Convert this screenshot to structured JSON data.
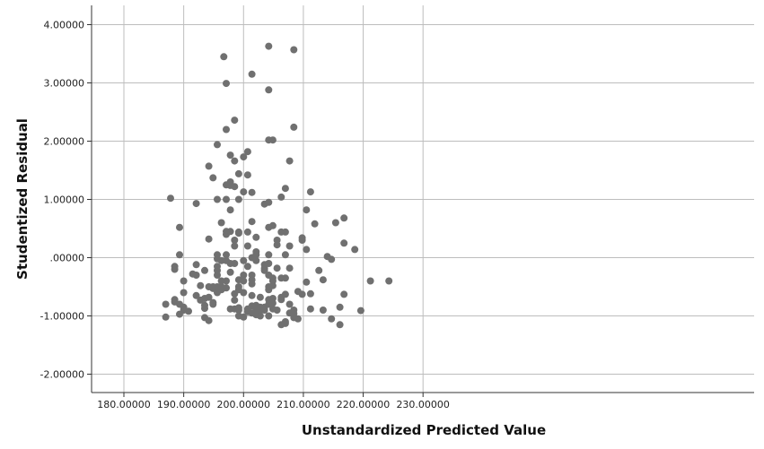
{
  "chart_data": {
    "type": "scatter",
    "title": "",
    "xlabel": "Unstandardized Predicted Value",
    "ylabel": "Studentized Residual",
    "xlim": [
      180,
      230
    ],
    "ylim": [
      -2.0,
      4.0
    ],
    "grid": true,
    "x_ticks": [
      180,
      190,
      200,
      210,
      220,
      230
    ],
    "x_tick_labels": [
      "180.00000",
      "190.00000",
      "200.00000",
      "210.00000",
      "220.00000",
      "230.00000"
    ],
    "y_ticks": [
      -2,
      -1,
      0,
      1,
      2,
      3,
      4
    ],
    "y_tick_labels": [
      "-2.00000",
      "-1.00000",
      ".00000",
      "1.00000",
      "2.00000",
      "3.00000",
      "4.00000"
    ],
    "colors": {
      "point": "#707070",
      "grid": "#bdbdbd",
      "axis": "#333333"
    },
    "points": [
      [
        187.0,
        -0.8
      ],
      [
        187.0,
        -1.02
      ],
      [
        187.8,
        1.02
      ],
      [
        188.5,
        -0.15
      ],
      [
        188.5,
        -0.2
      ],
      [
        188.5,
        -0.72
      ],
      [
        188.5,
        -0.76
      ],
      [
        189.3,
        0.52
      ],
      [
        189.3,
        0.05
      ],
      [
        189.3,
        -0.8
      ],
      [
        189.3,
        -0.97
      ],
      [
        190.0,
        -0.4
      ],
      [
        190.0,
        -0.6
      ],
      [
        190.0,
        -0.85
      ],
      [
        190.0,
        -0.9
      ],
      [
        190.8,
        -0.92
      ],
      [
        191.5,
        -0.28
      ],
      [
        192.1,
        0.93
      ],
      [
        192.1,
        -0.12
      ],
      [
        192.1,
        -0.3
      ],
      [
        192.1,
        -0.65
      ],
      [
        192.8,
        -0.48
      ],
      [
        192.8,
        -0.73
      ],
      [
        193.5,
        -0.22
      ],
      [
        193.5,
        -0.7
      ],
      [
        193.5,
        -0.82
      ],
      [
        193.5,
        -0.87
      ],
      [
        193.5,
        -1.03
      ],
      [
        194.2,
        1.57
      ],
      [
        194.2,
        0.32
      ],
      [
        194.2,
        -0.5
      ],
      [
        194.2,
        -0.68
      ],
      [
        194.2,
        -1.08
      ],
      [
        194.9,
        1.37
      ],
      [
        194.9,
        -0.5
      ],
      [
        194.9,
        -0.53
      ],
      [
        194.9,
        -0.77
      ],
      [
        194.9,
        -0.8
      ],
      [
        195.6,
        1.94
      ],
      [
        195.6,
        1.0
      ],
      [
        195.6,
        0.05
      ],
      [
        195.6,
        -0.02
      ],
      [
        195.6,
        -0.15
      ],
      [
        195.6,
        -0.22
      ],
      [
        195.6,
        -0.3
      ],
      [
        195.6,
        -0.5
      ],
      [
        195.6,
        -0.6
      ],
      [
        196.3,
        0.6
      ],
      [
        196.3,
        -0.05
      ],
      [
        196.3,
        -0.4
      ],
      [
        196.3,
        -0.5
      ],
      [
        196.3,
        -0.55
      ],
      [
        196.7,
        3.45
      ],
      [
        197.1,
        2.99
      ],
      [
        197.1,
        2.2
      ],
      [
        197.1,
        1.25
      ],
      [
        197.1,
        1.0
      ],
      [
        197.1,
        0.45
      ],
      [
        197.1,
        0.4
      ],
      [
        197.1,
        0.05
      ],
      [
        197.1,
        -0.05
      ],
      [
        197.1,
        -0.4
      ],
      [
        197.1,
        -0.52
      ],
      [
        197.8,
        1.76
      ],
      [
        197.8,
        1.3
      ],
      [
        197.8,
        1.24
      ],
      [
        197.8,
        0.82
      ],
      [
        197.8,
        0.45
      ],
      [
        197.8,
        -0.1
      ],
      [
        197.8,
        -0.25
      ],
      [
        197.8,
        -0.88
      ],
      [
        198.5,
        2.36
      ],
      [
        198.5,
        1.66
      ],
      [
        198.5,
        1.22
      ],
      [
        198.5,
        0.3
      ],
      [
        198.5,
        0.2
      ],
      [
        198.5,
        -0.1
      ],
      [
        198.5,
        -0.62
      ],
      [
        198.5,
        -0.73
      ],
      [
        198.5,
        -0.88
      ],
      [
        199.2,
        1.44
      ],
      [
        199.2,
        1.0
      ],
      [
        199.2,
        0.44
      ],
      [
        199.2,
        0.42
      ],
      [
        199.2,
        -0.38
      ],
      [
        199.2,
        -0.5
      ],
      [
        199.2,
        -0.55
      ],
      [
        199.2,
        -0.86
      ],
      [
        199.2,
        -0.9
      ],
      [
        199.2,
        -1.0
      ],
      [
        200.0,
        1.73
      ],
      [
        200.0,
        1.13
      ],
      [
        200.0,
        -0.05
      ],
      [
        200.0,
        -0.3
      ],
      [
        200.0,
        -0.4
      ],
      [
        200.0,
        -0.6
      ],
      [
        200.0,
        -1.02
      ],
      [
        200.7,
        1.82
      ],
      [
        200.7,
        1.42
      ],
      [
        200.7,
        0.44
      ],
      [
        200.7,
        0.2
      ],
      [
        200.7,
        -0.15
      ],
      [
        200.7,
        -0.88
      ],
      [
        200.7,
        -0.93
      ],
      [
        201.4,
        3.15
      ],
      [
        201.4,
        1.12
      ],
      [
        201.4,
        0.62
      ],
      [
        201.4,
        0.0
      ],
      [
        201.4,
        -0.3
      ],
      [
        201.4,
        -0.38
      ],
      [
        201.4,
        -0.45
      ],
      [
        201.4,
        -0.65
      ],
      [
        201.4,
        -0.83
      ],
      [
        201.4,
        -0.95
      ],
      [
        202.1,
        0.35
      ],
      [
        202.1,
        0.1
      ],
      [
        202.1,
        0.05
      ],
      [
        202.1,
        -0.05
      ],
      [
        202.1,
        -0.82
      ],
      [
        202.1,
        -0.88
      ],
      [
        202.1,
        -0.92
      ],
      [
        202.1,
        -0.98
      ],
      [
        202.8,
        -0.68
      ],
      [
        202.8,
        -0.85
      ],
      [
        202.8,
        -0.9
      ],
      [
        202.8,
        -1.0
      ],
      [
        203.5,
        0.92
      ],
      [
        203.5,
        -0.12
      ],
      [
        203.5,
        -0.18
      ],
      [
        203.5,
        -0.22
      ],
      [
        203.5,
        -0.85
      ],
      [
        203.5,
        -0.9
      ],
      [
        204.2,
        3.63
      ],
      [
        204.2,
        2.88
      ],
      [
        204.2,
        2.02
      ],
      [
        204.2,
        0.95
      ],
      [
        204.2,
        0.52
      ],
      [
        204.2,
        0.05
      ],
      [
        204.2,
        -0.1
      ],
      [
        204.2,
        -0.3
      ],
      [
        204.2,
        -0.5
      ],
      [
        204.2,
        -0.55
      ],
      [
        204.2,
        -0.72
      ],
      [
        204.2,
        -0.8
      ],
      [
        204.2,
        -1.0
      ],
      [
        204.9,
        2.02
      ],
      [
        204.9,
        0.55
      ],
      [
        204.9,
        -0.35
      ],
      [
        204.9,
        -0.4
      ],
      [
        204.9,
        -0.48
      ],
      [
        204.9,
        -0.7
      ],
      [
        204.9,
        -0.78
      ],
      [
        204.9,
        -0.88
      ],
      [
        205.6,
        0.3
      ],
      [
        205.6,
        0.22
      ],
      [
        205.6,
        -0.18
      ],
      [
        205.6,
        -0.9
      ],
      [
        206.3,
        1.04
      ],
      [
        206.3,
        0.44
      ],
      [
        206.3,
        -0.35
      ],
      [
        206.3,
        -0.68
      ],
      [
        206.3,
        -0.72
      ],
      [
        206.3,
        -1.15
      ],
      [
        207.0,
        1.19
      ],
      [
        207.0,
        0.44
      ],
      [
        207.0,
        0.05
      ],
      [
        207.0,
        -0.35
      ],
      [
        207.0,
        -0.63
      ],
      [
        207.0,
        -1.1
      ],
      [
        207.0,
        -1.13
      ],
      [
        207.7,
        1.66
      ],
      [
        207.7,
        0.2
      ],
      [
        207.7,
        -0.18
      ],
      [
        207.7,
        -0.8
      ],
      [
        207.7,
        -0.95
      ],
      [
        208.4,
        3.57
      ],
      [
        208.4,
        2.24
      ],
      [
        208.4,
        -0.9
      ],
      [
        208.4,
        -0.96
      ],
      [
        208.4,
        -1.03
      ],
      [
        209.1,
        -0.58
      ],
      [
        209.1,
        -1.05
      ],
      [
        209.8,
        0.34
      ],
      [
        209.8,
        0.3
      ],
      [
        209.8,
        -0.63
      ],
      [
        210.5,
        0.82
      ],
      [
        210.5,
        0.14
      ],
      [
        210.5,
        -0.42
      ],
      [
        211.2,
        1.13
      ],
      [
        211.2,
        -0.62
      ],
      [
        211.2,
        -0.88
      ],
      [
        211.9,
        0.58
      ],
      [
        212.6,
        -0.22
      ],
      [
        213.3,
        -0.38
      ],
      [
        213.3,
        -0.9
      ],
      [
        214.0,
        0.02
      ],
      [
        214.7,
        -0.03
      ],
      [
        214.7,
        -1.05
      ],
      [
        215.4,
        0.6
      ],
      [
        216.1,
        -0.85
      ],
      [
        216.1,
        -1.15
      ],
      [
        216.8,
        0.68
      ],
      [
        216.8,
        0.25
      ],
      [
        216.8,
        -0.63
      ],
      [
        218.6,
        0.14
      ],
      [
        219.6,
        -0.91
      ],
      [
        221.2,
        -0.4
      ],
      [
        224.3,
        -0.4
      ]
    ]
  }
}
